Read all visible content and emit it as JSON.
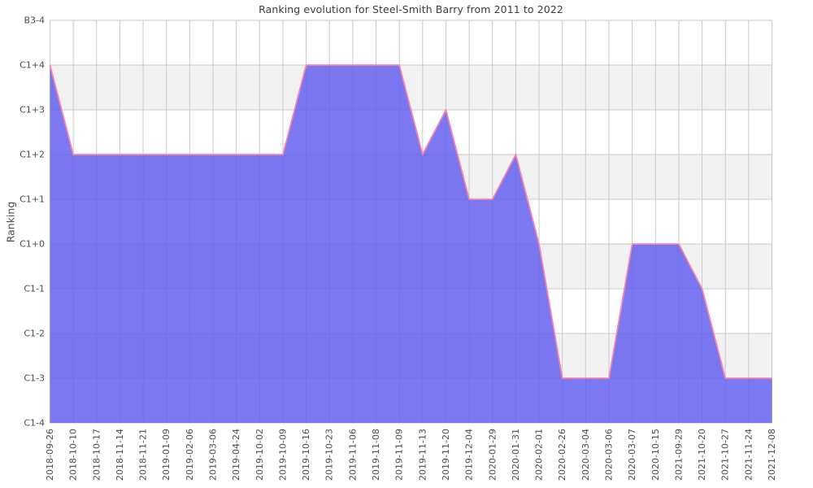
{
  "chart_data": {
    "type": "area",
    "title": "Ranking evolution for Steel-Smith Barry from 2011 to 2022",
    "ylabel": "Ranking",
    "xlabel": "",
    "legend": false,
    "grid": true,
    "background_bands": "alternating horizontal stripes",
    "y_levels": [
      "C1-4",
      "C1-3",
      "C1-2",
      "C1-1",
      "C1+0",
      "C1+1",
      "C1+2",
      "C1+3",
      "C1+4",
      "B3-4"
    ],
    "x": [
      "2018-09-26",
      "2018-10-10",
      "2018-10-17",
      "2018-11-14",
      "2018-11-21",
      "2019-01-09",
      "2019-02-06",
      "2019-03-06",
      "2019-04-24",
      "2019-10-02",
      "2019-10-09",
      "2019-10-16",
      "2019-10-23",
      "2019-11-06",
      "2019-11-08",
      "2019-11-09",
      "2019-11-13",
      "2019-11-20",
      "2019-12-04",
      "2020-01-29",
      "2020-01-31",
      "2020-02-01",
      "2020-02-26",
      "2020-03-04",
      "2020-03-06",
      "2020-03-07",
      "2020-10-15",
      "2021-09-29",
      "2021-10-20",
      "2021-10-27",
      "2021-11-24",
      "2021-12-08"
    ],
    "values": [
      "C1+4",
      "C1+2",
      "C1+2",
      "C1+2",
      "C1+2",
      "C1+2",
      "C1+2",
      "C1+2",
      "C1+2",
      "C1+2",
      "C1+2",
      "C1+4",
      "C1+4",
      "C1+4",
      "C1+4",
      "C1+4",
      "C1+2",
      "C1+3",
      "C1+1",
      "C1+1",
      "C1+2",
      "C1+0",
      "C1-3",
      "C1-3",
      "C1-3",
      "C1+0",
      "C1+0",
      "C1+0",
      "C1-1",
      "C1-3",
      "C1-3",
      "C1-3"
    ],
    "colors": {
      "area_fill": "#625ef0",
      "area_fill_opacity": 0.84,
      "line": "#f884ad",
      "band_base": "#ffffff",
      "band_shade": "#f2f2f2",
      "gridline": "#c9c9c9",
      "title_text": "#3c3c3c",
      "tick_text": "#4c4c4c"
    }
  }
}
